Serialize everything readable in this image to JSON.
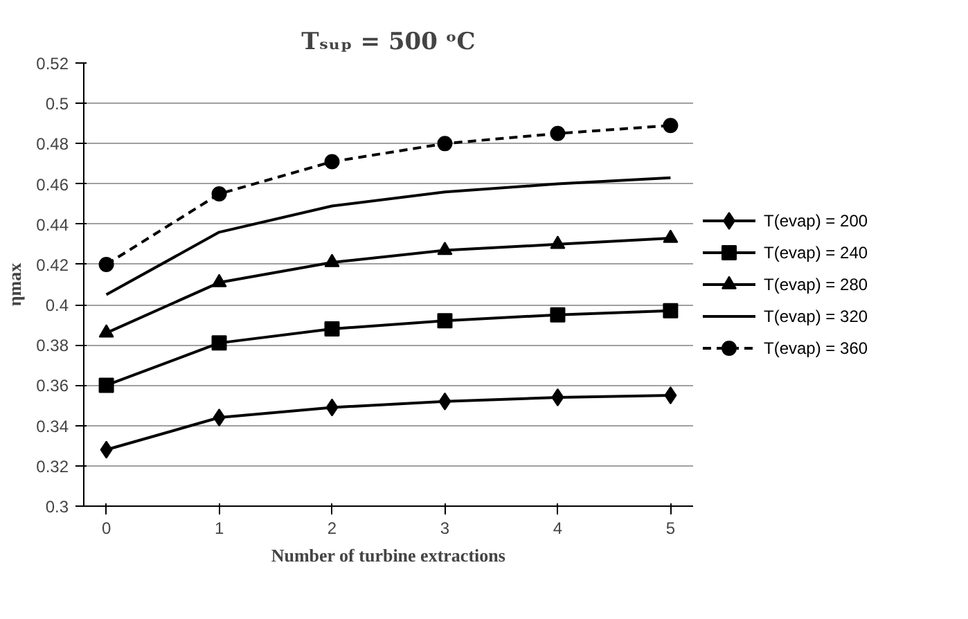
{
  "chart_data": {
    "type": "line",
    "title": "Tₛᵤₚ = 500 ᵒC",
    "xlabel": "Number of turbine extractions",
    "ylabel": "ηmax",
    "x": [
      0,
      1,
      2,
      3,
      4,
      5
    ],
    "xlim": [
      -0.2,
      5.2
    ],
    "xticks": [
      0,
      1,
      2,
      3,
      4,
      5
    ],
    "ylim": [
      0.3,
      0.52
    ],
    "yticks": [
      0.3,
      0.32,
      0.34,
      0.36,
      0.38,
      0.4,
      0.42,
      0.44,
      0.46,
      0.48,
      0.5,
      0.52
    ],
    "grid": "y",
    "legend": "right",
    "series": [
      {
        "name": "T(evap) = 200",
        "color": "#000000",
        "marker": "diamond",
        "line_style": "solid",
        "values": [
          0.328,
          0.344,
          0.349,
          0.352,
          0.354,
          0.355
        ]
      },
      {
        "name": "T(evap) = 240",
        "color": "#000000",
        "marker": "square",
        "line_style": "solid",
        "values": [
          0.36,
          0.381,
          0.388,
          0.392,
          0.395,
          0.397
        ]
      },
      {
        "name": "T(evap) = 280",
        "color": "#000000",
        "marker": "triangle",
        "line_style": "solid",
        "values": [
          0.386,
          0.411,
          0.421,
          0.427,
          0.43,
          0.433
        ]
      },
      {
        "name": "T(evap) = 320",
        "color": "#000000",
        "marker": "none",
        "line_style": "solid",
        "values": [
          0.405,
          0.436,
          0.449,
          0.456,
          0.46,
          0.463
        ]
      },
      {
        "name": "T(evap) = 360",
        "color": "#000000",
        "marker": "circle",
        "line_style": "dashed",
        "values": [
          0.42,
          0.455,
          0.471,
          0.48,
          0.485,
          0.489
        ]
      }
    ]
  }
}
